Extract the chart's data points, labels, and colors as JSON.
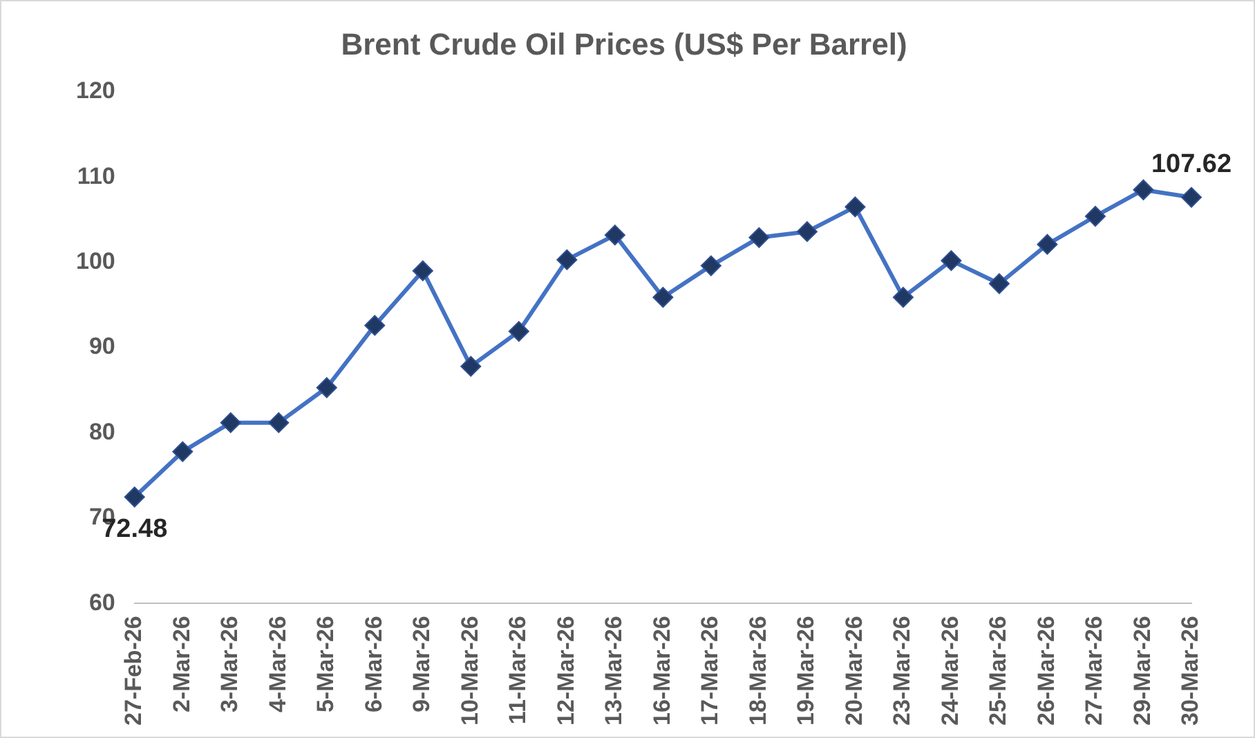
{
  "chart_data": {
    "type": "line",
    "title": "Brent Crude Oil Prices (US$ Per Barrel)",
    "categories": [
      "27-Feb-26",
      "2-Mar-26",
      "3-Mar-26",
      "4-Mar-26",
      "5-Mar-26",
      "6-Mar-26",
      "9-Mar-26",
      "10-Mar-26",
      "11-Mar-26",
      "12-Mar-26",
      "13-Mar-26",
      "16-Mar-26",
      "17-Mar-26",
      "18-Mar-26",
      "19-Mar-26",
      "20-Mar-26",
      "23-Mar-26",
      "24-Mar-26",
      "25-Mar-26",
      "26-Mar-26",
      "27-Mar-26",
      "29-Mar-26",
      "30-Mar-26"
    ],
    "series": [
      {
        "color": "#4472c4",
        "values": [
          72.48,
          77.8,
          81.2,
          81.2,
          85.3,
          92.6,
          99.0,
          87.8,
          91.9,
          100.3,
          103.2,
          95.9,
          99.6,
          102.9,
          103.6,
          106.5,
          95.9,
          100.2,
          97.5,
          102.1,
          105.4,
          108.5,
          107.62
        ],
        "value_labels": [
          "72.48",
          null,
          null,
          null,
          null,
          null,
          null,
          null,
          null,
          null,
          null,
          null,
          null,
          null,
          null,
          null,
          null,
          null,
          null,
          null,
          null,
          null,
          "107.62"
        ]
      }
    ],
    "ylim": [
      60,
      120
    ],
    "yticks": [
      60,
      70,
      80,
      90,
      100,
      110,
      120
    ],
    "grid": false,
    "legend": false,
    "marker": "diamond",
    "line_style": "solid"
  }
}
